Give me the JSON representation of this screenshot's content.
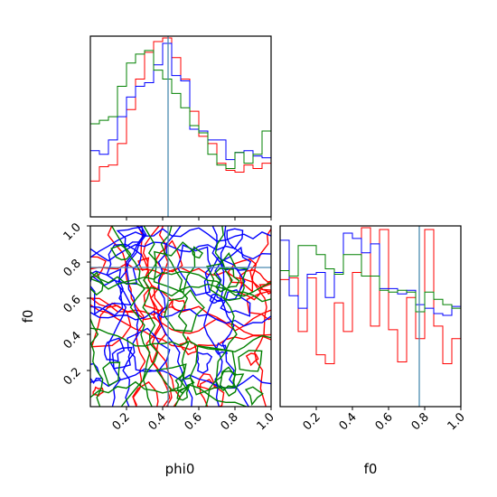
{
  "chart_data": {
    "type": "corner",
    "parameters": [
      "phi0",
      "f0"
    ],
    "truth": {
      "phi0": 0.43,
      "f0": 0.77
    },
    "truth_color": "#4a8bb0",
    "series_colors": [
      "#ff0000",
      "#0000ff",
      "#008000"
    ],
    "panels": {
      "hist_phi0": {
        "type": "step-histogram",
        "xlim": [
          0,
          1
        ],
        "bins": [
          0.0,
          0.05,
          0.1,
          0.15,
          0.2,
          0.25,
          0.3,
          0.35,
          0.4,
          0.45,
          0.5,
          0.55,
          0.6,
          0.65,
          0.7,
          0.75,
          0.8,
          0.85,
          0.9,
          0.95,
          1.0
        ],
        "series": [
          {
            "color": "#ff0000",
            "values": [
              0.2,
              0.28,
              0.29,
              0.41,
              0.6,
              0.77,
              0.92,
              0.98,
              1.0,
              0.89,
              0.77,
              0.59,
              0.45,
              0.41,
              0.3,
              0.26,
              0.25,
              0.29,
              0.27,
              0.3
            ]
          },
          {
            "color": "#0000ff",
            "values": [
              0.37,
              0.35,
              0.43,
              0.56,
              0.67,
              0.73,
              0.75,
              0.85,
              0.97,
              0.79,
              0.76,
              0.49,
              0.48,
              0.43,
              0.43,
              0.32,
              0.36,
              0.37,
              0.34,
              0.33
            ]
          },
          {
            "color": "#008000",
            "values": [
              0.52,
              0.54,
              0.56,
              0.73,
              0.86,
              0.91,
              0.93,
              0.82,
              0.77,
              0.69,
              0.61,
              0.51,
              0.47,
              0.35,
              0.29,
              0.27,
              0.36,
              0.3,
              0.35,
              0.48
            ]
          }
        ]
      },
      "hist_f0": {
        "type": "step-histogram",
        "xlim": [
          0,
          1
        ],
        "bins": [
          0.0,
          0.05,
          0.1,
          0.15,
          0.2,
          0.25,
          0.3,
          0.35,
          0.4,
          0.45,
          0.5,
          0.55,
          0.6,
          0.65,
          0.7,
          0.75,
          0.8,
          0.85,
          0.9,
          0.95,
          1.0
        ],
        "series": [
          {
            "color": "#ff0000",
            "values": [
              0.71,
              0.72,
              0.42,
              0.72,
              0.29,
              0.24,
              0.58,
              0.42,
              0.75,
              1.0,
              0.45,
              0.99,
              0.43,
              0.25,
              0.61,
              0.38,
              0.99,
              0.45,
              0.24,
              0.38
            ]
          },
          {
            "color": "#0000ff",
            "values": [
              0.93,
              0.62,
              0.55,
              0.74,
              0.75,
              0.61,
              0.75,
              0.97,
              0.94,
              0.86,
              0.91,
              0.66,
              0.66,
              0.63,
              0.65,
              0.57,
              0.55,
              0.52,
              0.51,
              0.56
            ]
          },
          {
            "color": "#008000",
            "values": [
              0.76,
              0.73,
              0.9,
              0.9,
              0.85,
              0.77,
              0.74,
              0.85,
              0.85,
              0.73,
              0.73,
              0.65,
              0.64,
              0.65,
              0.64,
              0.53,
              0.64,
              0.6,
              0.57,
              0.55
            ]
          }
        ]
      },
      "contour_f0_vs_phi0": {
        "type": "contour",
        "xlim": [
          0,
          1
        ],
        "ylim": [
          0,
          1
        ],
        "xlabel": "phi0",
        "ylabel": "f0"
      }
    },
    "xticks": [
      "0.2",
      "0.4",
      "0.6",
      "0.8",
      "1.0"
    ],
    "yticks": [
      "0.2",
      "0.4",
      "0.6",
      "0.8",
      "1.0"
    ],
    "xlabels": [
      "phi0",
      "f0"
    ],
    "ylabel": "f0"
  }
}
